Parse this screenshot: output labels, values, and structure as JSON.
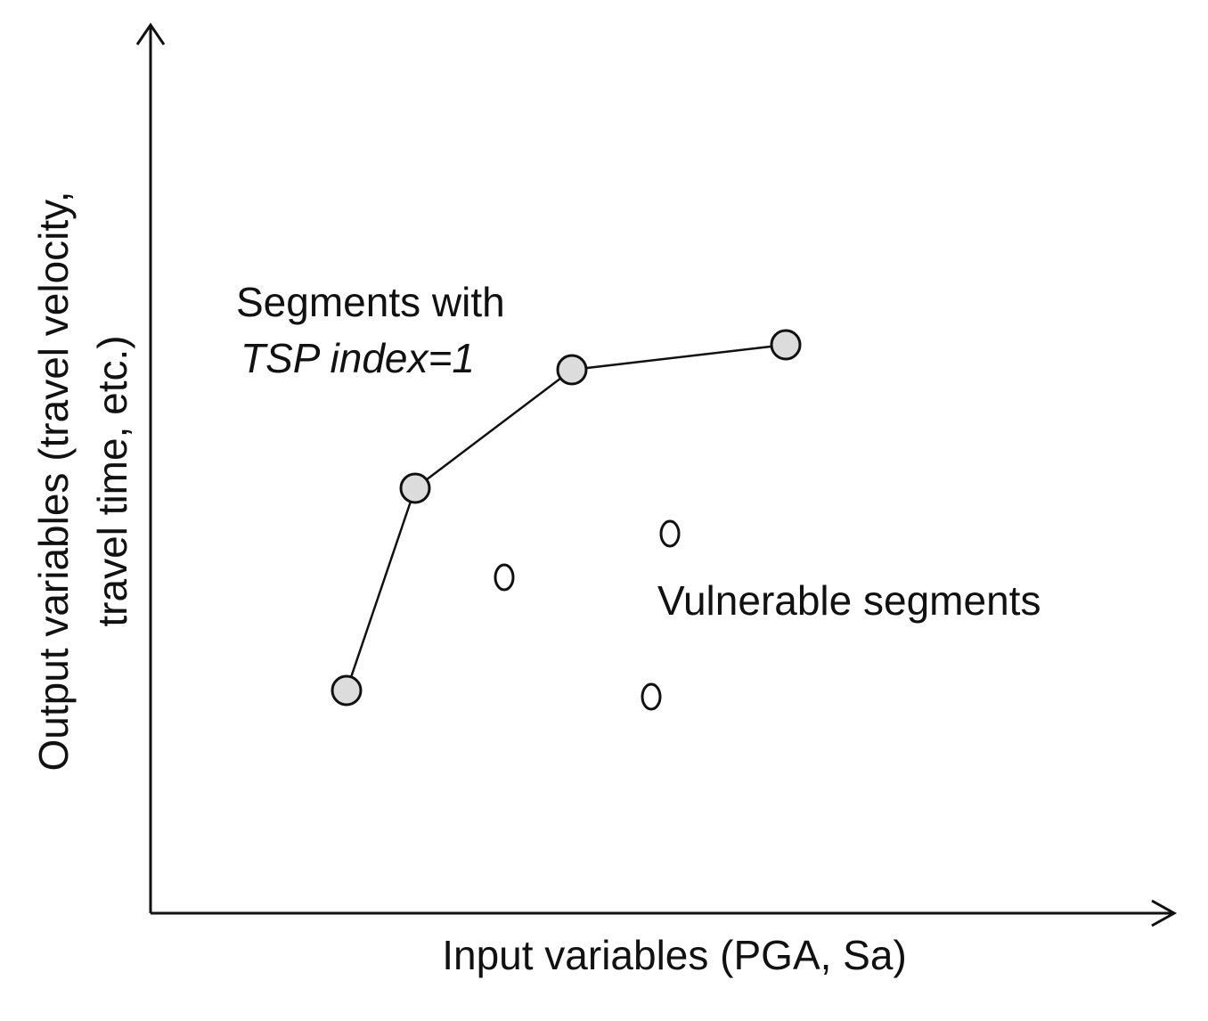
{
  "diagram": {
    "x_axis_label": "Input variables (PGA, Sa)",
    "y_axis_label_line1": "Output variables (travel velocity,",
    "y_axis_label_line2": "travel time, etc.)",
    "tsp_label_line1": "Segments with",
    "tsp_label_line2": "TSP index=1",
    "vulnerable_label": "Vulnerable segments",
    "colors": {
      "axis": "#111111",
      "tsp_point_fill": "#dcdcdc",
      "point_stroke": "#111111",
      "vulnerable_point_fill": "#ffffff"
    }
  }
}
